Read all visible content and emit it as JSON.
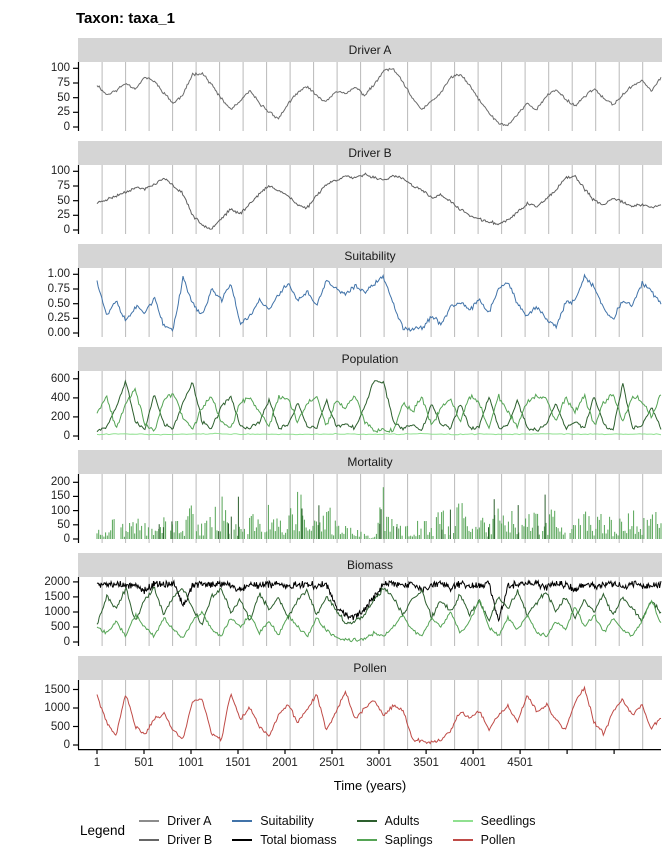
{
  "title": "Taxon: taxa_1",
  "x_axis": {
    "title": "Time (years)"
  },
  "legend": {
    "title": "Legend",
    "columns": [
      [
        {
          "label": "Driver A",
          "color": "#8c8c8c"
        },
        {
          "label": "Driver B",
          "color": "#666666"
        }
      ],
      [
        {
          "label": "Suitability",
          "color": "#4173a9"
        },
        {
          "label": "Total biomass",
          "color": "#000000"
        }
      ],
      [
        {
          "label": "Adults",
          "color": "#2d5f2e"
        },
        {
          "label": "Saplings",
          "color": "#55a455"
        }
      ],
      [
        {
          "label": "Seedlings",
          "color": "#90e090"
        },
        {
          "label": "Pollen",
          "color": "#bf4b47"
        }
      ]
    ]
  },
  "chart_data": {
    "type": "line",
    "title": "Taxon: taxa_1",
    "xlabel": "Time (years)",
    "x": {
      "min": 1,
      "max": 6000,
      "tick_start": 1,
      "tick_step": 500,
      "tick_count": 12,
      "labeled_ticks": 10,
      "grid_start": 55,
      "grid_step": 250,
      "grid_count": 24,
      "grid_color": "#b9b9b9",
      "axis_color": "#000000"
    },
    "panels": [
      {
        "label": "Driver A",
        "ylim": [
          0,
          104
        ],
        "tick_values": [
          0,
          25,
          50,
          75,
          100
        ],
        "tick_labels": [
          "0",
          "25",
          "50",
          "75",
          "100"
        ],
        "series": [
          {
            "name": "Driver A",
            "type": "line",
            "color": "#6b6b6b",
            "seed": 11,
            "n": 520,
            "noise": 3,
            "values": [
              72,
              55,
              62,
              75,
              65,
              85,
              78,
              58,
              40,
              55,
              90,
              92,
              72,
              48,
              30,
              44,
              62,
              40,
              26,
              14,
              40,
              58,
              70,
              52,
              44,
              62,
              56,
              68,
              54,
              72,
              96,
              99,
              76,
              48,
              30,
              44,
              58,
              85,
              90,
              70,
              46,
              24,
              6,
              3,
              22,
              40,
              30,
              52,
              64,
              48,
              36,
              52,
              66,
              48,
              38,
              55,
              70,
              80,
              62,
              84
            ]
          }
        ]
      },
      {
        "label": "Driver B",
        "ylim": [
          0,
          104
        ],
        "tick_values": [
          0,
          25,
          50,
          75,
          100
        ],
        "tick_labels": [
          "0",
          "25",
          "50",
          "75",
          "100"
        ],
        "series": [
          {
            "name": "Driver B",
            "type": "line",
            "color": "#5f5f5f",
            "seed": 23,
            "n": 520,
            "noise": 3,
            "values": [
              46,
              52,
              58,
              65,
              72,
              70,
              78,
              88,
              75,
              62,
              25,
              8,
              3,
              20,
              35,
              28,
              45,
              62,
              75,
              68,
              58,
              42,
              38,
              60,
              78,
              85,
              92,
              88,
              95,
              90,
              85,
              92,
              88,
              75,
              68,
              55,
              60,
              48,
              35,
              25,
              18,
              14,
              10,
              18,
              30,
              45,
              40,
              52,
              68,
              88,
              92,
              70,
              50,
              42,
              55,
              48,
              40,
              44,
              38,
              42
            ]
          }
        ]
      },
      {
        "label": "Suitability",
        "ylim": [
          0,
          1.04
        ],
        "tick_values": [
          0,
          0.25,
          0.5,
          0.75,
          1
        ],
        "tick_labels": [
          "0.00",
          "0.25",
          "0.50",
          "0.75",
          "1.00"
        ],
        "series": [
          {
            "name": "Suitability",
            "type": "line",
            "color": "#4173a9",
            "seed": 37,
            "n": 480,
            "noise": 0.05,
            "values": [
              0.9,
              0.3,
              0.55,
              0.2,
              0.45,
              0.35,
              0.6,
              0.1,
              0.08,
              0.95,
              0.5,
              0.3,
              0.75,
              0.55,
              0.85,
              0.15,
              0.3,
              0.55,
              0.4,
              0.65,
              0.85,
              0.55,
              0.7,
              0.45,
              0.9,
              0.75,
              0.65,
              0.8,
              0.7,
              0.85,
              0.95,
              0.5,
              0.1,
              0.06,
              0.08,
              0.3,
              0.15,
              0.45,
              0.5,
              0.4,
              0.55,
              0.35,
              0.75,
              0.85,
              0.5,
              0.3,
              0.45,
              0.25,
              0.1,
              0.5,
              0.55,
              0.95,
              0.8,
              0.4,
              0.25,
              0.55,
              0.45,
              0.85,
              0.7,
              0.5
            ]
          }
        ]
      },
      {
        "label": "Population",
        "ylim": [
          0,
          640
        ],
        "tick_values": [
          0,
          200,
          400,
          600
        ],
        "tick_labels": [
          "0",
          "200",
          "400",
          "600"
        ],
        "series": [
          {
            "name": "Seedlings",
            "type": "line",
            "color": "#90e090",
            "seed": 91,
            "n": 240,
            "noise": 6,
            "values": [
              18,
              22,
              15,
              20,
              25,
              18,
              20,
              16,
              22,
              18,
              20,
              24,
              16,
              20,
              18,
              22,
              19,
              17,
              21,
              18
            ]
          },
          {
            "name": "Adults",
            "type": "line",
            "color": "#2d5f2e",
            "seed": 53,
            "n": 460,
            "noise": 25,
            "values": [
              60,
              100,
              300,
              590,
              150,
              60,
              450,
              120,
              80,
              350,
              560,
              150,
              80,
              300,
              420,
              100,
              80,
              150,
              380,
              80,
              120,
              350,
              100,
              80,
              380,
              100,
              120,
              80,
              300,
              590,
              560,
              150,
              80,
              120,
              60,
              350,
              120,
              80,
              350,
              80,
              100,
              420,
              80,
              120,
              380,
              80,
              60,
              120,
              350,
              80,
              150,
              80,
              420,
              120,
              60,
              560,
              80,
              100,
              300,
              80
            ]
          },
          {
            "name": "Saplings",
            "type": "line",
            "color": "#55a455",
            "seed": 67,
            "n": 460,
            "noise": 30,
            "values": [
              250,
              420,
              80,
              350,
              500,
              120,
              40,
              380,
              450,
              200,
              60,
              300,
              420,
              150,
              80,
              350,
              400,
              250,
              100,
              420,
              380,
              150,
              350,
              420,
              100,
              380,
              300,
              420,
              150,
              60,
              80,
              40,
              350,
              250,
              420,
              100,
              300,
              380,
              150,
              420,
              350,
              80,
              420,
              250,
              100,
              350,
              420,
              380,
              150,
              400,
              250,
              420,
              100,
              350,
              450,
              150,
              420,
              380,
              200,
              450
            ]
          }
        ]
      },
      {
        "label": "Mortality",
        "ylim": [
          0,
          215
        ],
        "tick_values": [
          0,
          50,
          100,
          150,
          200
        ],
        "tick_labels": [
          "0",
          "50",
          "100",
          "150",
          "200"
        ],
        "series": [
          {
            "name": "Saplings",
            "type": "spikes",
            "color": "#55a455",
            "seed": 77,
            "count": 330,
            "zero_prob": 0.15,
            "envelope": [
              70,
              50,
              90,
              40,
              110,
              60,
              30,
              120,
              80,
              50,
              145,
              60,
              100,
              170,
              95,
              60,
              110,
              80,
              145,
              60,
              100,
              190,
              120,
              80,
              145,
              60,
              80,
              40,
              20,
              5,
              200,
              80,
              60,
              40,
              90,
              60,
              110,
              80,
              145,
              60,
              90,
              50,
              110,
              160,
              60,
              90,
              120,
              60,
              145,
              80,
              60,
              100,
              80,
              120,
              60,
              90,
              110,
              70,
              145,
              60
            ]
          },
          {
            "name": "Adults",
            "type": "spikes",
            "color": "#2d5f2e",
            "seed": 31,
            "count": 400,
            "zero_prob": 0.955,
            "envelope": [
              150,
              100,
              180,
              120,
              200,
              160,
              140,
              190,
              130,
              170
            ]
          }
        ]
      },
      {
        "label": "Biomass",
        "ylim": [
          0,
          2030
        ],
        "tick_values": [
          0,
          500,
          1000,
          1500,
          2000
        ],
        "tick_labels": [
          "0",
          "500",
          "1000",
          "1500",
          "2000"
        ],
        "series": [
          {
            "name": "Total biomass",
            "type": "line",
            "color": "#000000",
            "seed": 5,
            "n": 800,
            "noise": 160,
            "values": [
              1950,
              1900,
              1980,
              1850,
              1950,
              1700,
              1950,
              1900,
              1980,
              1200,
              1900,
              1950,
              1850,
              1950,
              1900,
              1700,
              1950,
              1850,
              1900,
              1950,
              1800,
              1950,
              1900,
              1850,
              1950,
              1200,
              900,
              850,
              1100,
              1500,
              1900,
              1950,
              1850,
              1950,
              1700,
              1900,
              1950,
              1800,
              1950,
              1850,
              1900,
              1950,
              700,
              1850,
              1950,
              1900,
              1950,
              1850,
              1900,
              1950,
              1700,
              1950,
              1850,
              1900,
              1950,
              1800,
              1950,
              1900,
              1850,
              1950
            ]
          },
          {
            "name": "Adults",
            "type": "line",
            "color": "#2d5f2e",
            "seed": 15,
            "n": 520,
            "noise": 90,
            "values": [
              600,
              1500,
              1100,
              1800,
              700,
              1400,
              1800,
              900,
              1500,
              1800,
              1100,
              600,
              1500,
              1800,
              1000,
              1400,
              700,
              1600,
              1100,
              1500,
              800,
              1400,
              1700,
              900,
              1500,
              1100,
              600,
              700,
              900,
              1400,
              1800,
              1500,
              900,
              1400,
              1700,
              800,
              1400,
              1000,
              1600,
              900,
              1400,
              700,
              1500,
              1100,
              1700,
              900,
              1300,
              1700,
              1000,
              1500,
              800,
              1400,
              1000,
              1600,
              900,
              1500,
              1100,
              700,
              1400,
              1000
            ]
          },
          {
            "name": "Saplings",
            "type": "line",
            "color": "#55a455",
            "seed": 27,
            "n": 480,
            "noise": 70,
            "values": [
              500,
              300,
              700,
              200,
              900,
              500,
              200,
              800,
              400,
              150,
              700,
              1000,
              400,
              200,
              800,
              500,
              900,
              300,
              700,
              200,
              900,
              500,
              200,
              800,
              400,
              150,
              80,
              60,
              100,
              300,
              200,
              500,
              900,
              400,
              200,
              800,
              500,
              1000,
              300,
              700,
              1400,
              500,
              200,
              800,
              400,
              900,
              300,
              200,
              700,
              400,
              1200,
              500,
              900,
              300,
              800,
              400,
              200,
              700,
              1400,
              600
            ]
          }
        ]
      },
      {
        "label": "Pollen",
        "ylim": [
          0,
          1650
        ],
        "tick_values": [
          0,
          500,
          1000,
          1500
        ],
        "tick_labels": [
          "0",
          "500",
          "1000",
          "1500"
        ],
        "series": [
          {
            "name": "Pollen",
            "type": "line",
            "color": "#bf4b47",
            "seed": 41,
            "n": 480,
            "noise": 60,
            "values": [
              1350,
              600,
              250,
              1400,
              500,
              300,
              700,
              850,
              400,
              150,
              1200,
              1250,
              300,
              150,
              1400,
              700,
              1000,
              500,
              250,
              800,
              1100,
              600,
              1000,
              1350,
              400,
              900,
              1450,
              700,
              1000,
              1200,
              800,
              1050,
              950,
              150,
              100,
              80,
              120,
              400,
              900,
              700,
              950,
              400,
              800,
              1050,
              600,
              1350,
              900,
              1100,
              700,
              400,
              1150,
              1550,
              600,
              300,
              900,
              1250,
              800,
              1100,
              450,
              750
            ]
          }
        ]
      }
    ]
  }
}
